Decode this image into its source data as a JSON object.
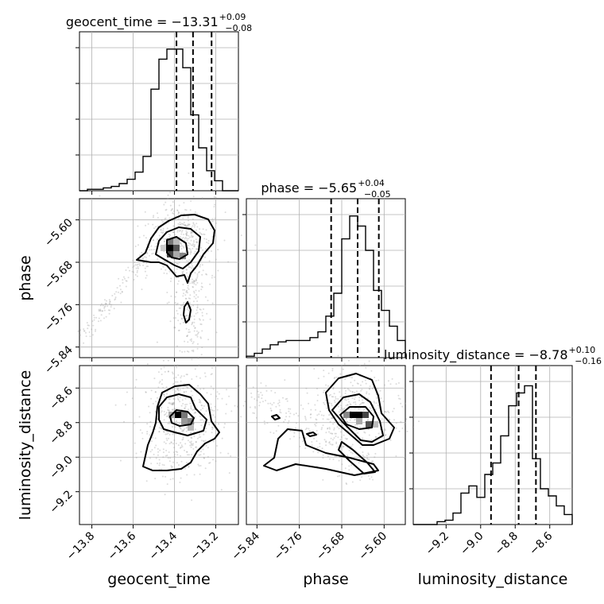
{
  "chart_data": {
    "type": "corner",
    "parameters": [
      "geocent_time",
      "phase",
      "luminosity_distance"
    ],
    "titles": [
      {
        "prefix": "geocent_time = ",
        "median": "−13.31",
        "plus": "+0.09",
        "minus": "−0.08"
      },
      {
        "prefix": "phase = ",
        "median": "−5.65",
        "plus": "+0.04",
        "minus": "−0.05"
      },
      {
        "prefix": "luminosity_distance = ",
        "median": "−8.78",
        "plus": "+0.10",
        "minus": "−0.16"
      }
    ],
    "axis_labels": {
      "x": [
        "geocent_time",
        "phase",
        "luminosity_distance"
      ],
      "y": [
        "phase",
        "luminosity_distance"
      ]
    },
    "ranges": {
      "geocent_time": [
        -13.86,
        -13.09
      ],
      "phase": [
        -5.86,
        -5.56
      ],
      "luminosity_distance": [
        -9.39,
        -8.47
      ]
    },
    "ticks": {
      "geocent_time": {
        "values": [
          -13.8,
          -13.6,
          -13.4,
          -13.2
        ],
        "labels": [
          "−13.8",
          "−13.6",
          "−13.4",
          "−13.2"
        ]
      },
      "phase": {
        "values": [
          -5.84,
          -5.76,
          -5.68,
          -5.6
        ],
        "labels": [
          "−5.84",
          "−5.76",
          "−5.68",
          "−5.60"
        ]
      },
      "luminosity_distance": {
        "values": [
          -9.2,
          -9.0,
          -8.8,
          -8.6
        ],
        "labels": [
          "−9.2",
          "−9.0",
          "−8.8",
          "−8.6"
        ]
      }
    },
    "quantiles": {
      "geocent_time": [
        -13.39,
        -13.31,
        -13.22
      ],
      "phase": [
        -5.7,
        -5.65,
        -5.61
      ],
      "luminosity_distance": [
        -8.94,
        -8.78,
        -8.68
      ]
    },
    "histograms": [
      {
        "param": "geocent_time",
        "counts": [
          0,
          1,
          1,
          2,
          3,
          5,
          8,
          13,
          24,
          71,
          92,
          99,
          99,
          86,
          53,
          30,
          14,
          7,
          0,
          0
        ]
      },
      {
        "param": "phase",
        "counts": [
          1,
          3,
          6,
          9,
          11,
          12,
          12,
          12,
          14,
          18,
          29,
          45,
          83,
          99,
          92,
          75,
          47,
          33,
          22,
          12
        ]
      },
      {
        "param": "luminosity_distance",
        "counts": [
          0,
          0,
          0,
          2,
          3,
          8,
          22,
          27,
          19,
          35,
          43,
          62,
          83,
          92,
          97,
          46,
          25,
          20,
          13,
          7
        ]
      }
    ],
    "grid": true
  }
}
